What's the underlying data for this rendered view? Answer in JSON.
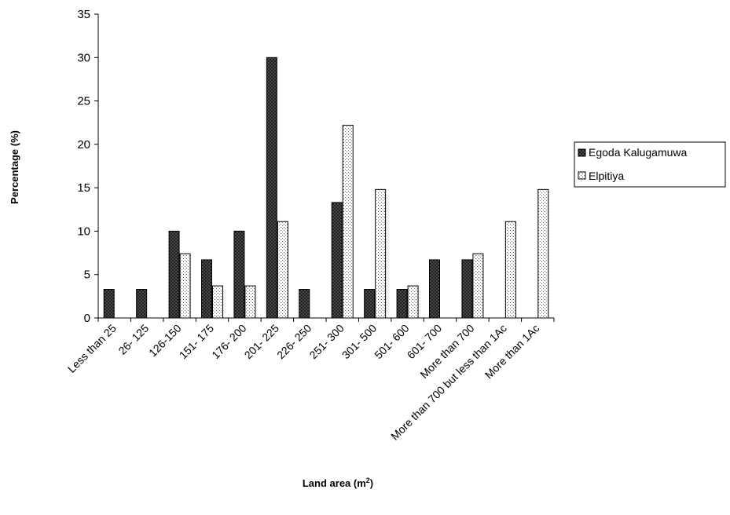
{
  "chart_data": {
    "type": "bar",
    "title": "",
    "xlabel": "Land area (m",
    "xlabel_sup": "2",
    "xlabel_close": ")",
    "ylabel": "Percentage (%)",
    "ylim": [
      0,
      35
    ],
    "yticks": [
      "0",
      "5",
      "10",
      "15",
      "20",
      "25",
      "30",
      "35"
    ],
    "grid": false,
    "legend_position": "right",
    "categories": [
      "Less than 25",
      "26- 125",
      "126-150",
      "151- 175",
      "176- 200",
      "201- 225",
      "226- 250",
      "251- 300",
      "301- 500",
      "501- 600",
      "601- 700",
      "More than 700",
      "More than 700 but less than 1Ac",
      "More than 1Ac"
    ],
    "series": [
      {
        "name": "Egoda Kalugamuwa",
        "pattern": "crosshatch-dark",
        "values": [
          3.3,
          3.3,
          10,
          6.7,
          10,
          30,
          3.3,
          13.3,
          3.3,
          3.3,
          6.7,
          6.7,
          0,
          0
        ]
      },
      {
        "name": "Elpitiya",
        "pattern": "dots-light",
        "values": [
          0,
          0,
          7.4,
          3.7,
          3.7,
          11.1,
          0,
          22.2,
          14.8,
          3.7,
          0,
          7.4,
          11.1,
          14.8
        ]
      }
    ]
  }
}
